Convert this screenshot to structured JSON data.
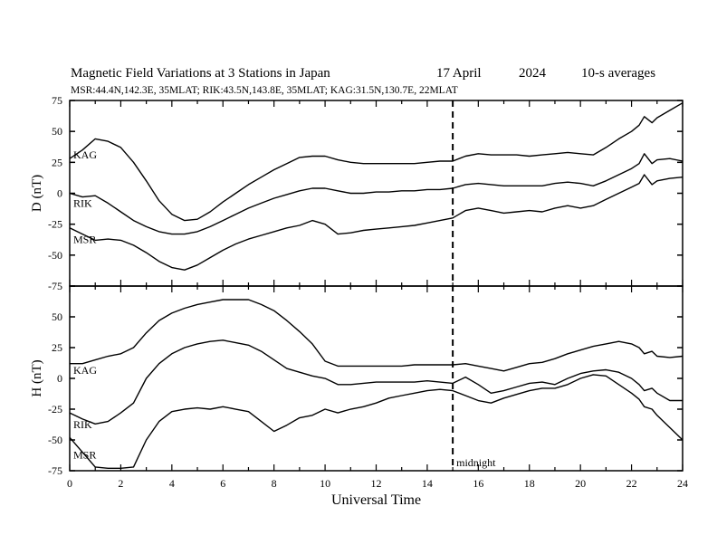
{
  "header": {
    "title": "Magnetic Field Variations at 3 Stations in Japan",
    "date": "17 April",
    "year": "2024",
    "averaging": "10-s averages",
    "stations": "MSR:44.4N,142.3E, 35MLAT;  RIK:43.5N,143.8E, 35MLAT;  KAG:31.5N,130.7E, 22MLAT"
  },
  "chart_data": [
    {
      "type": "line",
      "panel": "D",
      "ylabel": "D (nT)",
      "ylim": [
        -75,
        75
      ],
      "yticks": [
        75,
        50,
        25,
        0,
        -25,
        -50,
        -75
      ],
      "xlim": [
        0,
        24
      ],
      "grid": false,
      "series": [
        {
          "name": "KAG",
          "x": [
            0,
            0.5,
            1,
            1.5,
            2,
            2.5,
            3,
            3.5,
            4,
            4.5,
            5,
            5.5,
            6,
            6.5,
            7,
            7.5,
            8,
            8.5,
            9,
            9.5,
            10,
            10.5,
            11,
            11.5,
            12,
            12.5,
            13,
            13.5,
            14,
            14.5,
            15,
            15.5,
            16,
            16.5,
            17,
            17.5,
            18,
            18.5,
            19,
            19.5,
            20,
            20.5,
            21,
            21.5,
            22,
            22.3,
            22.5,
            22.8,
            23,
            23.5,
            24
          ],
          "y": [
            28,
            35,
            44,
            42,
            37,
            25,
            10,
            -6,
            -17,
            -22,
            -21,
            -15,
            -7,
            0,
            7,
            13,
            19,
            24,
            29,
            30,
            30,
            27,
            25,
            24,
            24,
            24,
            24,
            24,
            25,
            26,
            26,
            30,
            32,
            31,
            31,
            31,
            30,
            31,
            32,
            33,
            32,
            31,
            37,
            44,
            50,
            55,
            62,
            57,
            61,
            67,
            73
          ]
        },
        {
          "name": "RIK",
          "x": [
            0,
            0.5,
            1,
            1.5,
            2,
            2.5,
            3,
            3.5,
            4,
            4.5,
            5,
            5.5,
            6,
            6.5,
            7,
            7.5,
            8,
            8.5,
            9,
            9.5,
            10,
            10.5,
            11,
            11.5,
            12,
            12.5,
            13,
            13.5,
            14,
            14.5,
            15,
            15.5,
            16,
            16.5,
            17,
            17.5,
            18,
            18.5,
            19,
            19.5,
            20,
            20.5,
            21,
            21.5,
            22,
            22.3,
            22.5,
            22.8,
            23,
            23.5,
            24
          ],
          "y": [
            0,
            -3,
            -2,
            -8,
            -15,
            -22,
            -27,
            -31,
            -33,
            -33,
            -31,
            -27,
            -22,
            -17,
            -12,
            -8,
            -4,
            -1,
            2,
            4,
            4,
            2,
            0,
            0,
            1,
            1,
            2,
            2,
            3,
            3,
            4,
            7,
            8,
            7,
            6,
            6,
            6,
            6,
            8,
            9,
            8,
            6,
            10,
            15,
            20,
            24,
            32,
            24,
            27,
            28,
            26
          ]
        },
        {
          "name": "MSR",
          "x": [
            0,
            0.5,
            1,
            1.5,
            2,
            2.5,
            3,
            3.5,
            4,
            4.5,
            5,
            5.5,
            6,
            6.5,
            7,
            7.5,
            8,
            8.5,
            9,
            9.5,
            10,
            10.5,
            11,
            11.5,
            12,
            12.5,
            13,
            13.5,
            14,
            14.5,
            15,
            15.5,
            16,
            16.5,
            17,
            17.5,
            18,
            18.5,
            19,
            19.5,
            20,
            20.5,
            21,
            21.5,
            22,
            22.3,
            22.5,
            22.8,
            23,
            23.5,
            24
          ],
          "y": [
            -28,
            -33,
            -38,
            -37,
            -38,
            -42,
            -48,
            -55,
            -60,
            -62,
            -58,
            -52,
            -46,
            -41,
            -37,
            -34,
            -31,
            -28,
            -26,
            -22,
            -25,
            -33,
            -32,
            -30,
            -29,
            -28,
            -27,
            -26,
            -24,
            -22,
            -20,
            -14,
            -12,
            -14,
            -16,
            -15,
            -14,
            -15,
            -12,
            -10,
            -12,
            -10,
            -5,
            0,
            5,
            8,
            15,
            7,
            10,
            12,
            13
          ]
        }
      ]
    },
    {
      "type": "line",
      "panel": "H",
      "ylabel": "H (nT)",
      "xlabel": "Universal Time",
      "ylim": [
        -75,
        75
      ],
      "yticks": [
        75,
        50,
        25,
        0,
        -25,
        -50,
        -75
      ],
      "xlim": [
        0,
        24
      ],
      "xticks": [
        0,
        2,
        4,
        6,
        8,
        10,
        12,
        14,
        16,
        18,
        20,
        22,
        24
      ],
      "grid": false,
      "series": [
        {
          "name": "KAG",
          "x": [
            0,
            0.5,
            1,
            1.5,
            2,
            2.5,
            3,
            3.5,
            4,
            4.5,
            5,
            5.5,
            6,
            6.5,
            7,
            7.5,
            8,
            8.5,
            9,
            9.5,
            10,
            10.5,
            11,
            11.5,
            12,
            12.5,
            13,
            13.5,
            14,
            14.5,
            15,
            15.5,
            16,
            16.5,
            17,
            17.5,
            18,
            18.5,
            19,
            19.5,
            20,
            20.5,
            21,
            21.5,
            22,
            22.3,
            22.5,
            22.8,
            23,
            23.5,
            24
          ],
          "y": [
            12,
            12,
            15,
            18,
            20,
            25,
            37,
            47,
            53,
            57,
            60,
            62,
            64,
            64,
            64,
            60,
            55,
            47,
            38,
            28,
            14,
            10,
            10,
            10,
            10,
            10,
            10,
            11,
            11,
            11,
            11,
            12,
            10,
            8,
            6,
            9,
            12,
            13,
            16,
            20,
            23,
            26,
            28,
            30,
            28,
            25,
            20,
            22,
            18,
            17,
            18
          ]
        },
        {
          "name": "RIK",
          "x": [
            0,
            0.5,
            1,
            1.5,
            2,
            2.5,
            3,
            3.5,
            4,
            4.5,
            5,
            5.5,
            6,
            6.5,
            7,
            7.5,
            8,
            8.5,
            9,
            9.5,
            10,
            10.5,
            11,
            11.5,
            12,
            12.5,
            13,
            13.5,
            14,
            14.5,
            15,
            15.5,
            16,
            16.5,
            17,
            17.5,
            18,
            18.5,
            19,
            19.5,
            20,
            20.5,
            21,
            21.5,
            22,
            22.3,
            22.5,
            22.8,
            23,
            23.5,
            24
          ],
          "y": [
            -28,
            -33,
            -37,
            -35,
            -28,
            -20,
            0,
            12,
            20,
            25,
            28,
            30,
            31,
            29,
            27,
            22,
            15,
            8,
            5,
            2,
            0,
            -5,
            -5,
            -4,
            -3,
            -3,
            -3,
            -3,
            -2,
            -3,
            -4,
            1,
            -5,
            -12,
            -10,
            -7,
            -4,
            -3,
            -5,
            0,
            4,
            6,
            7,
            5,
            0,
            -5,
            -10,
            -8,
            -12,
            -18,
            -18
          ]
        },
        {
          "name": "MSR",
          "x": [
            0,
            0.5,
            1,
            1.5,
            2,
            2.5,
            3,
            3.5,
            4,
            4.5,
            5,
            5.5,
            6,
            6.5,
            7,
            7.5,
            8,
            8.5,
            9,
            9.5,
            10,
            10.5,
            11,
            11.5,
            12,
            12.5,
            13,
            13.5,
            14,
            14.5,
            15,
            15.5,
            16,
            16.5,
            17,
            17.5,
            18,
            18.5,
            19,
            19.5,
            20,
            20.5,
            21,
            21.5,
            22,
            22.3,
            22.5,
            22.8,
            23,
            23.5,
            24
          ],
          "y": [
            -48,
            -60,
            -72,
            -73,
            -73,
            -72,
            -50,
            -35,
            -27,
            -25,
            -24,
            -25,
            -23,
            -25,
            -27,
            -35,
            -43,
            -38,
            -32,
            -30,
            -25,
            -28,
            -25,
            -23,
            -20,
            -16,
            -14,
            -12,
            -10,
            -9,
            -10,
            -14,
            -18,
            -20,
            -16,
            -13,
            -10,
            -8,
            -8,
            -5,
            0,
            3,
            2,
            -5,
            -12,
            -17,
            -23,
            -25,
            -30,
            -40,
            -50
          ]
        }
      ]
    }
  ],
  "annotations": {
    "midnight_label": "midnight",
    "midnight_ut": 15
  }
}
